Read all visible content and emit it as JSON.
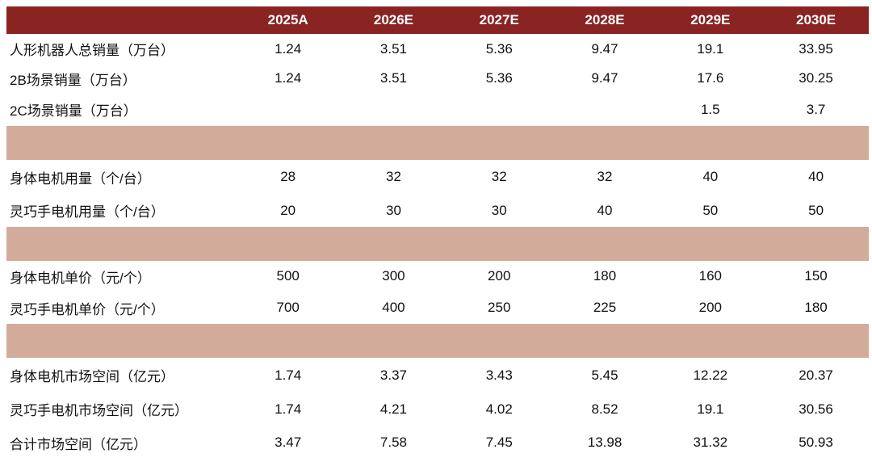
{
  "header": {
    "label": "",
    "years": [
      "2025A",
      "2026E",
      "2027E",
      "2028E",
      "2029E",
      "2030E"
    ]
  },
  "rows": [
    {
      "label": "人形机器人总销量（万台）",
      "values": [
        "1.24",
        "3.51",
        "5.36",
        "9.47",
        "19.1",
        "33.95"
      ]
    },
    {
      "label": "2B场景销量（万台）",
      "values": [
        "1.24",
        "3.51",
        "5.36",
        "9.47",
        "17.6",
        "30.25"
      ]
    },
    {
      "label": "2C场景销量（万台）",
      "values": [
        "",
        "",
        "",
        "",
        "1.5",
        "3.7"
      ]
    },
    {
      "label": "身体电机用量（个/台）",
      "values": [
        "28",
        "32",
        "32",
        "32",
        "40",
        "40"
      ]
    },
    {
      "label": "灵巧手电机用量（个/台）",
      "values": [
        "20",
        "30",
        "30",
        "40",
        "50",
        "50"
      ]
    },
    {
      "label": "身体电机单价（元/个）",
      "values": [
        "500",
        "300",
        "200",
        "180",
        "160",
        "150"
      ]
    },
    {
      "label": "灵巧手电机单价（元/个）",
      "values": [
        "700",
        "400",
        "250",
        "225",
        "200",
        "180"
      ]
    },
    {
      "label": "身体电机市场空间（亿元）",
      "values": [
        "1.74",
        "3.37",
        "3.43",
        "5.45",
        "12.22",
        "20.37"
      ]
    },
    {
      "label": "灵巧手电机市场空间（亿元）",
      "values": [
        "1.74",
        "4.21",
        "4.02",
        "8.52",
        "19.1",
        "30.56"
      ]
    },
    {
      "label": "合计市场空间（亿元）",
      "values": [
        "3.47",
        "7.58",
        "7.45",
        "13.98",
        "31.32",
        "50.93"
      ]
    }
  ],
  "colors": {
    "header_bg": "#8a2423",
    "separator_bg": "#d2ab9b"
  }
}
